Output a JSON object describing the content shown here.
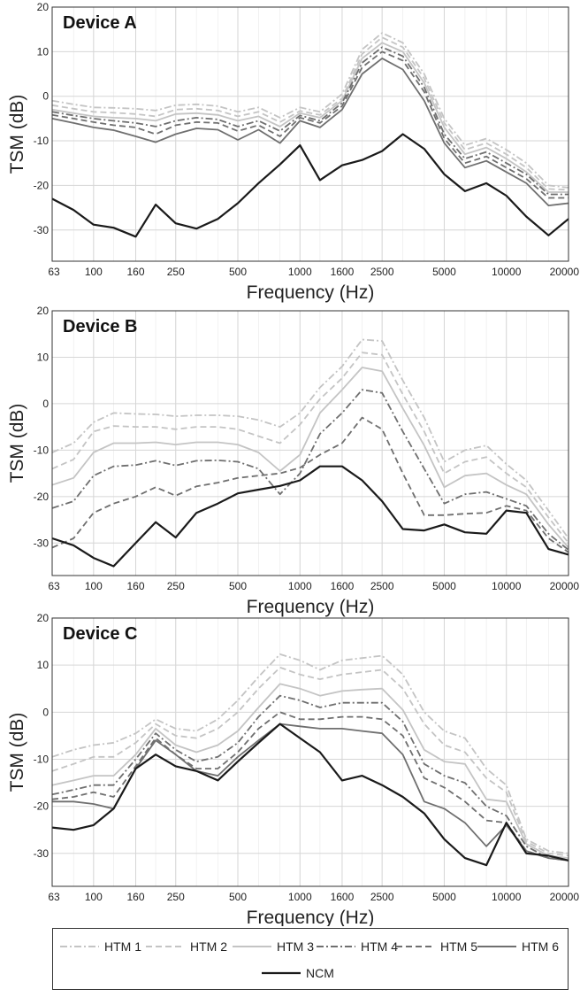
{
  "chart_data": [
    {
      "type": "line",
      "title": "Device A",
      "xlabel": "Frequency (Hz)",
      "ylabel": "TSM (dB)",
      "xscale": "log",
      "xlim": [
        63,
        20000
      ],
      "ylim": [
        -37,
        20
      ],
      "x": [
        63,
        80,
        100,
        125,
        160,
        200,
        250,
        315,
        400,
        500,
        630,
        800,
        1000,
        1250,
        1600,
        2000,
        2500,
        3150,
        4000,
        5000,
        6300,
        8000,
        10000,
        12500,
        16000,
        20000
      ],
      "x_ticks": [
        63,
        100,
        160,
        250,
        500,
        1000,
        1600,
        2500,
        5000,
        10000,
        20000
      ],
      "x_tick_labels": [
        "63",
        "100",
        "160",
        "250",
        "500",
        "1000",
        "1600",
        "2500",
        "5000",
        "10000",
        "20000"
      ],
      "y_ticks": [
        20,
        10,
        0,
        -10,
        -20,
        -30
      ],
      "y_tick_labels": [
        "20",
        "10",
        "0",
        "-10",
        "-20",
        "-30"
      ],
      "grid": true,
      "series": [
        {
          "name": "HTM 1",
          "values": [
            -1,
            -1.8,
            -2.5,
            -2.6,
            -2.8,
            -3.2,
            -2,
            -1.8,
            -2.2,
            -3.5,
            -2.5,
            -4.8,
            -2.5,
            -3.5,
            0.5,
            10.5,
            14.2,
            12,
            5,
            -5,
            -11,
            -9.5,
            -12,
            -15,
            -20,
            -20.5
          ]
        },
        {
          "name": "HTM 2",
          "values": [
            -2,
            -2.8,
            -3.5,
            -3.7,
            -4,
            -4.5,
            -3,
            -2.8,
            -3.2,
            -4.5,
            -3.5,
            -5.8,
            -3.3,
            -4.2,
            -0.5,
            9.5,
            13.2,
            11,
            4,
            -6,
            -12,
            -10.5,
            -13,
            -16,
            -20.8,
            -21
          ]
        },
        {
          "name": "HTM 3",
          "values": [
            -3,
            -3.8,
            -4.5,
            -4.8,
            -5,
            -5.5,
            -4,
            -3.8,
            -4.2,
            -5.5,
            -4.5,
            -6.8,
            -3.8,
            -4.8,
            -1,
            8.5,
            12,
            10,
            3,
            -7,
            -13,
            -11.5,
            -14,
            -17,
            -21.5,
            -21.5
          ]
        },
        {
          "name": "HTM 4",
          "values": [
            -3.5,
            -4.3,
            -5,
            -5.5,
            -6,
            -6.8,
            -5.5,
            -4.8,
            -5.2,
            -6.8,
            -5.5,
            -7.8,
            -4.3,
            -5.5,
            -1.5,
            7.5,
            11,
            9,
            2,
            -8.5,
            -14,
            -12.5,
            -15,
            -17.5,
            -22,
            -22
          ]
        },
        {
          "name": "HTM 5",
          "values": [
            -4.2,
            -5,
            -5.8,
            -6.5,
            -7,
            -8.5,
            -6.5,
            -5.8,
            -6,
            -7.8,
            -6.5,
            -9,
            -4.8,
            -6,
            -2.2,
            6.5,
            10,
            8,
            1,
            -9.5,
            -15,
            -13.5,
            -16,
            -18.5,
            -22.8,
            -22.8
          ]
        },
        {
          "name": "HTM 6",
          "values": [
            -5,
            -6,
            -7,
            -7.6,
            -9,
            -10.3,
            -8.5,
            -7.2,
            -7.5,
            -9.8,
            -7.5,
            -10.5,
            -5.5,
            -7,
            -3,
            5,
            8.5,
            6,
            -1,
            -10.5,
            -16,
            -14.5,
            -17,
            -19.5,
            -24.5,
            -24
          ]
        },
        {
          "name": "NCM",
          "values": [
            -23,
            -25.5,
            -28.8,
            -29.5,
            -31.5,
            -24.3,
            -28.5,
            -29.7,
            -27.5,
            -24,
            -19.5,
            -15.3,
            -11,
            -18.8,
            -15.5,
            -14.3,
            -12.3,
            -8.5,
            -11.8,
            -17.5,
            -21.3,
            -19.5,
            -22.3,
            -27,
            -31.2,
            -27.5
          ]
        }
      ]
    },
    {
      "type": "line",
      "title": "Device B",
      "xlabel": "Frequency (Hz)",
      "ylabel": "TSM (dB)",
      "xscale": "log",
      "xlim": [
        63,
        20000
      ],
      "ylim": [
        -37,
        20
      ],
      "x": [
        63,
        80,
        100,
        125,
        160,
        200,
        250,
        315,
        400,
        500,
        630,
        800,
        1000,
        1250,
        1600,
        2000,
        2500,
        3150,
        4000,
        5000,
        6300,
        8000,
        10000,
        12500,
        16000,
        20000
      ],
      "x_ticks": [
        63,
        100,
        160,
        250,
        500,
        1000,
        1600,
        2500,
        5000,
        10000,
        20000
      ],
      "x_tick_labels": [
        "63",
        "100",
        "160",
        "250",
        "500",
        "1000",
        "1600",
        "2500",
        "5000",
        "10000",
        "20000"
      ],
      "y_ticks": [
        20,
        10,
        0,
        -10,
        -20,
        -30
      ],
      "y_tick_labels": [
        "20",
        "10",
        "0",
        "-10",
        "-20",
        "-30"
      ],
      "grid": true,
      "series": [
        {
          "name": "HTM 1",
          "values": [
            -10.5,
            -8.5,
            -4,
            -2,
            -2.2,
            -2.3,
            -2.7,
            -2.5,
            -2.5,
            -2.7,
            -3.5,
            -5,
            -2,
            3.5,
            8,
            13.8,
            13.5,
            5,
            -3,
            -12.5,
            -10,
            -9,
            -13,
            -16.5,
            -23,
            -29
          ]
        },
        {
          "name": "HTM 2",
          "values": [
            -14,
            -12,
            -6,
            -4.8,
            -5,
            -5,
            -5.5,
            -5,
            -5,
            -5.5,
            -7,
            -8.5,
            -4.5,
            1,
            5.5,
            11,
            10.5,
            2,
            -6,
            -15,
            -12.5,
            -11.5,
            -15,
            -18,
            -24.5,
            -30
          ]
        },
        {
          "name": "HTM 3",
          "values": [
            -17.5,
            -16,
            -10.5,
            -8.5,
            -8.5,
            -8.3,
            -8.8,
            -8.3,
            -8.3,
            -8.8,
            -10.5,
            -14.5,
            -11,
            -2,
            3,
            7.8,
            7,
            -1,
            -9,
            -18,
            -15.5,
            -15,
            -17.5,
            -19.5,
            -26,
            -31
          ]
        },
        {
          "name": "HTM 4",
          "values": [
            -22.5,
            -21,
            -15.5,
            -13.5,
            -13.2,
            -12.3,
            -13.3,
            -12.3,
            -12.2,
            -12.5,
            -14,
            -19.5,
            -15,
            -6.5,
            -2,
            3,
            2.3,
            -6,
            -14,
            -21.5,
            -19.5,
            -19,
            -20.5,
            -22,
            -28,
            -31.5
          ]
        },
        {
          "name": "HTM 5",
          "values": [
            -31,
            -29,
            -23.5,
            -21.5,
            -20,
            -18,
            -19.8,
            -17.8,
            -17,
            -16,
            -15.5,
            -15,
            -13.8,
            -11,
            -8.5,
            -3,
            -5.5,
            -15,
            -24,
            -24,
            -23.7,
            -23.5,
            -22,
            -23,
            -29,
            -32
          ]
        },
        {
          "name": "NCM",
          "values": [
            -29,
            -30.5,
            -33.2,
            -35,
            -30,
            -25.5,
            -28.8,
            -23.5,
            -21.5,
            -19.3,
            -18.5,
            -17.7,
            -16.5,
            -13.5,
            -13.5,
            -16.5,
            -21,
            -27,
            -27.3,
            -26,
            -27.7,
            -28,
            -23,
            -23.5,
            -31.3,
            -32.5
          ]
        }
      ]
    },
    {
      "type": "line",
      "title": "Device C",
      "xlabel": "Frequency (Hz)",
      "ylabel": "TSM (dB)",
      "xscale": "log",
      "xlim": [
        63,
        20000
      ],
      "ylim": [
        -37,
        20
      ],
      "x": [
        63,
        80,
        100,
        125,
        160,
        200,
        250,
        315,
        400,
        500,
        630,
        800,
        1000,
        1250,
        1600,
        2000,
        2500,
        3150,
        4000,
        5000,
        6300,
        8000,
        10000,
        12500,
        16000,
        20000
      ],
      "x_ticks": [
        63,
        100,
        160,
        250,
        500,
        1000,
        1600,
        2500,
        5000,
        10000,
        20000
      ],
      "x_tick_labels": [
        "63",
        "100",
        "160",
        "250",
        "500",
        "1000",
        "1600",
        "2500",
        "5000",
        "10000",
        "20000"
      ],
      "y_ticks": [
        20,
        10,
        0,
        -10,
        -20,
        -30
      ],
      "y_tick_labels": [
        "20",
        "10",
        "0",
        "-10",
        "-20",
        "-30"
      ],
      "grid": true,
      "series": [
        {
          "name": "HTM 1",
          "values": [
            -9.5,
            -8,
            -7,
            -6.5,
            -4.5,
            -1.5,
            -3.5,
            -4,
            -1.5,
            2.5,
            7.5,
            12.3,
            11,
            9,
            11,
            11.5,
            12,
            8,
            0,
            -4,
            -5.5,
            -12,
            -15.5,
            -27,
            -29.5,
            -30
          ]
        },
        {
          "name": "HTM 2",
          "values": [
            -12.5,
            -11,
            -9.5,
            -9.5,
            -6.5,
            -2.5,
            -5,
            -5.5,
            -3.5,
            0,
            5,
            9.5,
            8,
            7,
            8,
            8.5,
            9,
            5,
            -2.5,
            -7,
            -8.5,
            -14,
            -17,
            -27.5,
            -30,
            -30.5
          ]
        },
        {
          "name": "HTM 3",
          "values": [
            -15.5,
            -14.5,
            -13.5,
            -13.5,
            -9,
            -3.5,
            -7,
            -8.5,
            -7,
            -4,
            1,
            6,
            5,
            3.5,
            4.5,
            4.8,
            5,
            0.5,
            -8,
            -10.5,
            -11,
            -18.5,
            -19,
            -28,
            -30.5,
            -31
          ]
        },
        {
          "name": "HTM 4",
          "values": [
            -17.5,
            -16.5,
            -15.5,
            -15.5,
            -10,
            -4.5,
            -8,
            -10.5,
            -9.5,
            -6.5,
            -1,
            3.5,
            2.5,
            1,
            2,
            2,
            2,
            -2,
            -11,
            -13.5,
            -15,
            -20,
            -22,
            -28.5,
            -31,
            -31.5
          ]
        },
        {
          "name": "HTM 5",
          "values": [
            -18.5,
            -18,
            -17,
            -18,
            -11.5,
            -5.5,
            -9,
            -12,
            -12,
            -8.5,
            -3.5,
            0,
            -1.5,
            -1.5,
            -1,
            -1,
            -1.5,
            -5,
            -14,
            -16,
            -19,
            -23,
            -23.5,
            -29.5,
            -31,
            -31.5
          ]
        },
        {
          "name": "HTM 6",
          "values": [
            -19,
            -19,
            -19.5,
            -20.5,
            -12,
            -6,
            -9,
            -12.5,
            -13.5,
            -9.5,
            -6,
            -2.5,
            -3,
            -3.5,
            -3.5,
            -4,
            -4.5,
            -9,
            -19,
            -20.5,
            -23.5,
            -28.5,
            -24,
            -29.5,
            -31,
            -31.5
          ]
        },
        {
          "name": "NCM",
          "values": [
            -24.5,
            -25,
            -24,
            -20.5,
            -12,
            -9,
            -11.5,
            -12.5,
            -14.5,
            -10.5,
            -6.5,
            -2.5,
            -5.5,
            -8.5,
            -14.5,
            -13.5,
            -15.5,
            -18,
            -21.5,
            -27,
            -31,
            -32.5,
            -23.5,
            -30,
            -30.5,
            -31.5
          ]
        }
      ]
    }
  ],
  "legend": {
    "placement": "bottom",
    "items": [
      {
        "name": "HTM 1",
        "color": "#c4c4c4",
        "dash": "dash-dot"
      },
      {
        "name": "HTM 2",
        "color": "#c4c4c4",
        "dash": "dashed"
      },
      {
        "name": "HTM 3",
        "color": "#c4c4c4",
        "dash": "solid"
      },
      {
        "name": "HTM 4",
        "color": "#6f6f6f",
        "dash": "dash-dot"
      },
      {
        "name": "HTM 5",
        "color": "#6f6f6f",
        "dash": "dashed"
      },
      {
        "name": "HTM 6",
        "color": "#6f6f6f",
        "dash": "solid"
      },
      {
        "name": "NCM",
        "color": "#1a1a1a",
        "dash": "solid"
      }
    ]
  }
}
